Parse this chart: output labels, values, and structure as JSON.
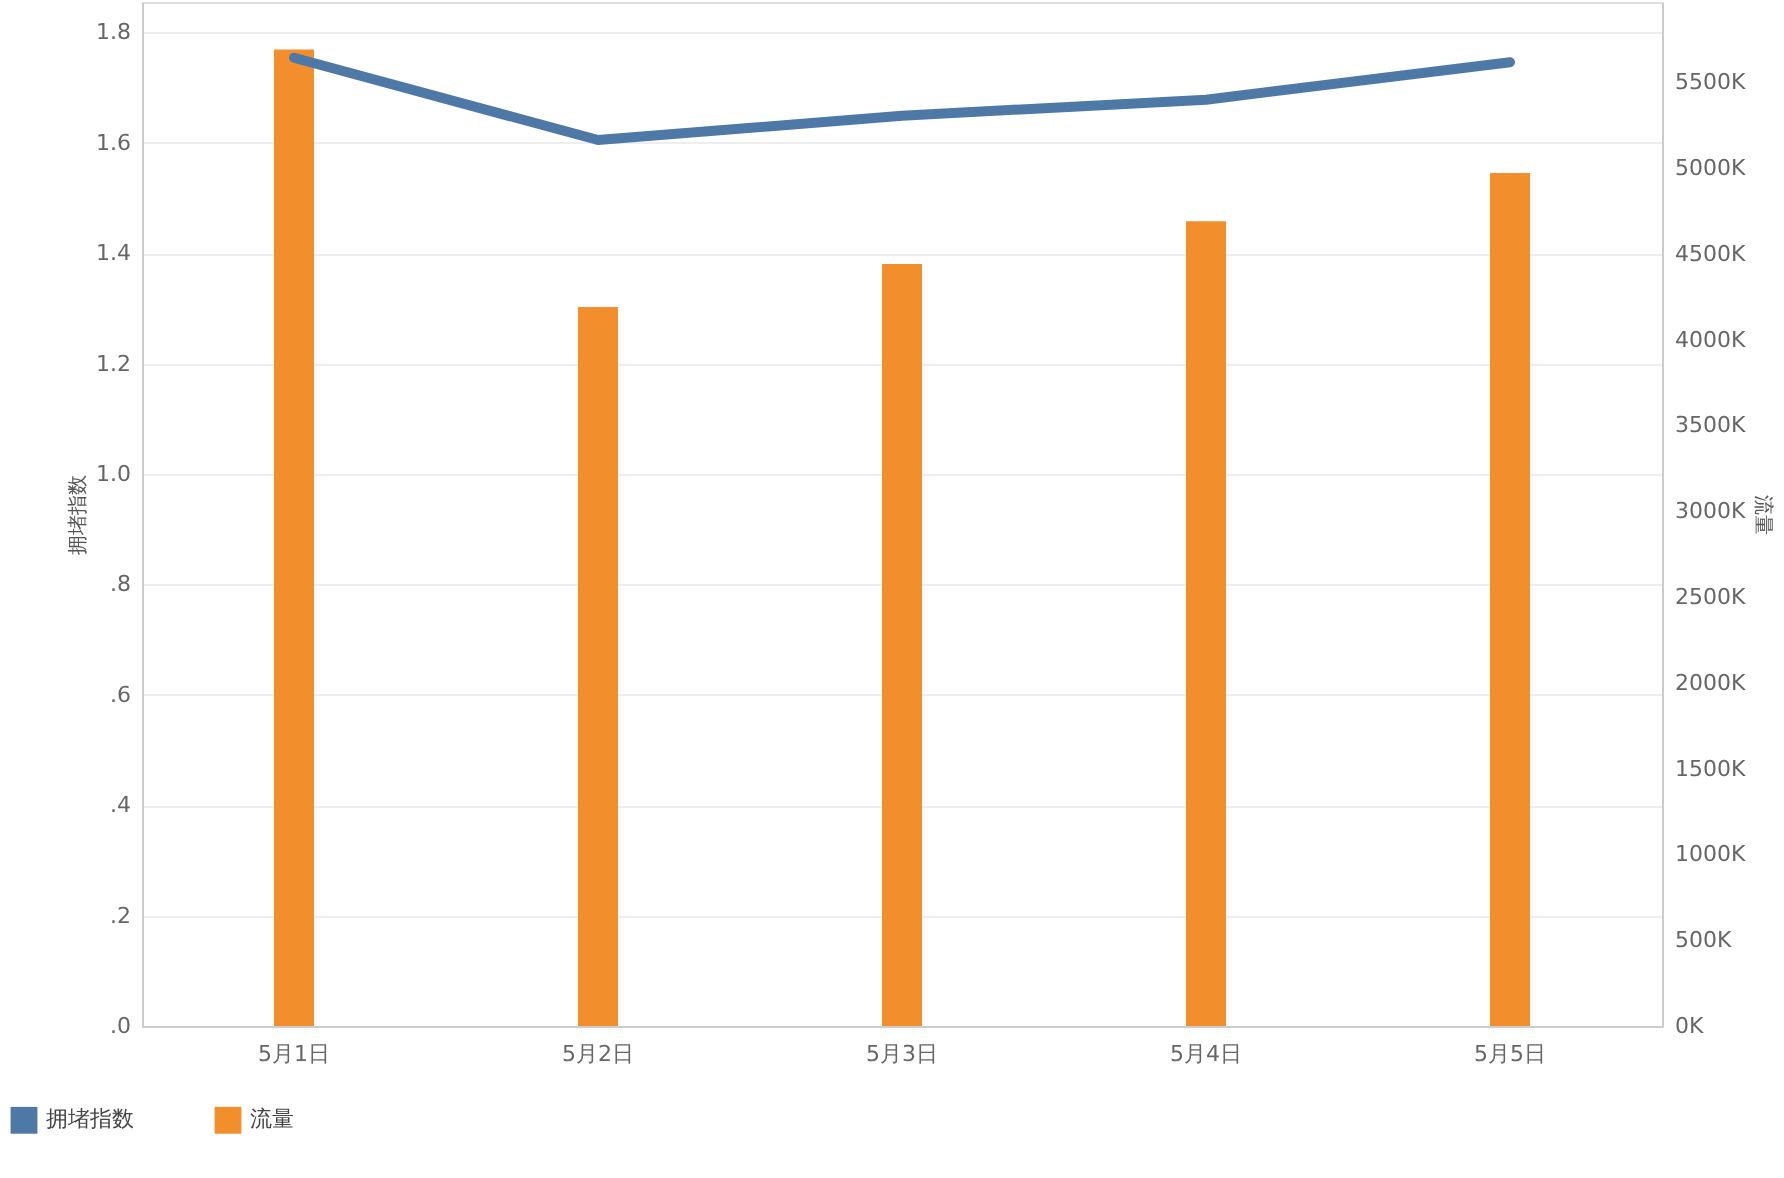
{
  "chart_data": {
    "type": "bar",
    "categories": [
      "5月1日",
      "5月2日",
      "5月3日",
      "5月4日",
      "5月5日"
    ],
    "series": [
      {
        "name": "拥堵指数",
        "type": "line",
        "color": "#4e79a7",
        "values": [
          1.754,
          1.605,
          1.649,
          1.678,
          1.746
        ]
      },
      {
        "name": "流量",
        "axis": "y2",
        "color": "#f28e2b",
        "values": [
          5690000,
          4190000,
          4440000,
          4690000,
          4970000
        ]
      }
    ],
    "ylabel": "拥堵指数",
    "y2label": "流量",
    "ylim": [
      0,
      1.855
    ],
    "yticks": [
      {
        "value": 0,
        "label": ".0"
      },
      {
        "value": 0.2,
        "label": ".2"
      },
      {
        "value": 0.4,
        "label": ".4"
      },
      {
        "value": 0.6,
        "label": ".6"
      },
      {
        "value": 0.8,
        "label": ".8"
      },
      {
        "value": 1.0,
        "label": "1.0"
      },
      {
        "value": 1.2,
        "label": "1.2"
      },
      {
        "value": 1.4,
        "label": "1.4"
      },
      {
        "value": 1.6,
        "label": "1.6"
      },
      {
        "value": 1.8,
        "label": "1.8"
      }
    ],
    "y2lim": [
      0,
      5967000
    ],
    "y2ticks": [
      {
        "value": 0,
        "label": "0K"
      },
      {
        "value": 500000,
        "label": "500K"
      },
      {
        "value": 1000000,
        "label": "1000K"
      },
      {
        "value": 1500000,
        "label": "1500K"
      },
      {
        "value": 2000000,
        "label": "2000K"
      },
      {
        "value": 2500000,
        "label": "2500K"
      },
      {
        "value": 3000000,
        "label": "3000K"
      },
      {
        "value": 3500000,
        "label": "3500K"
      },
      {
        "value": 4000000,
        "label": "4000K"
      },
      {
        "value": 4500000,
        "label": "4500K"
      },
      {
        "value": 5000000,
        "label": "5000K"
      },
      {
        "value": 5500000,
        "label": "5500K"
      }
    ],
    "grid": "y",
    "legend": "bottom left",
    "line_style": "solid",
    "marker": "none"
  }
}
